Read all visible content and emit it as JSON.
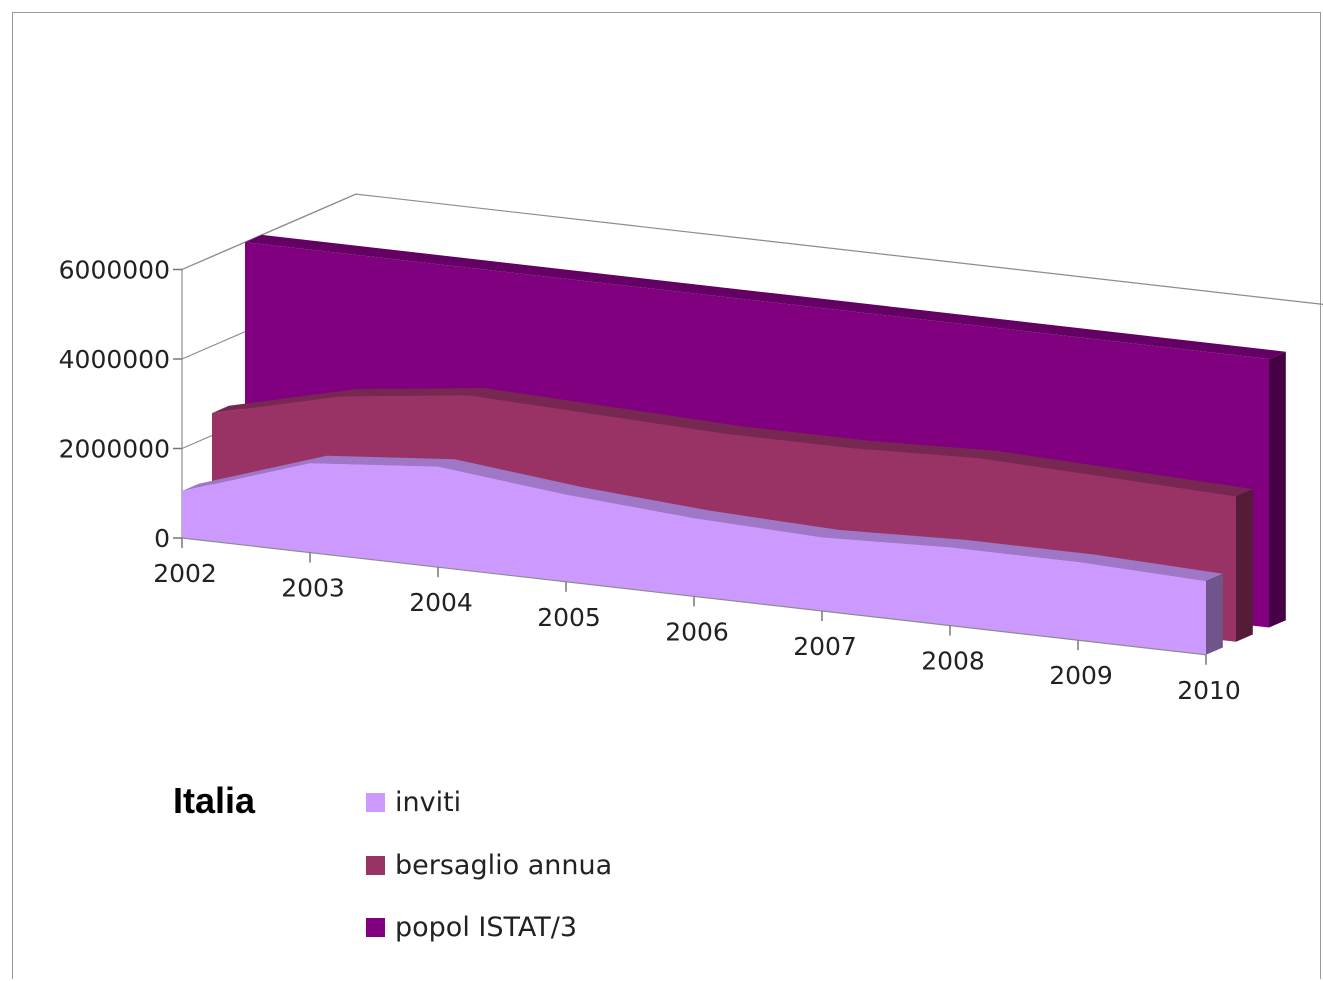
{
  "chart_data": {
    "type": "area",
    "subtype": "3d-area",
    "title": "Italia",
    "categories": [
      "2002",
      "2003",
      "2004",
      "2005",
      "2006",
      "2007",
      "2008",
      "2009",
      "2010"
    ],
    "ylim": [
      0,
      6000000
    ],
    "yticks": [
      "0",
      "2000000",
      "4000000",
      "6000000"
    ],
    "grid": true,
    "legend_position": "bottom-left",
    "series": [
      {
        "name": "inviti",
        "color": "#cc99ff",
        "values": [
          1050000,
          2000000,
          2250000,
          1950000,
          1750000,
          1650000,
          1750000,
          1750000,
          1650000
        ]
      },
      {
        "name": "bersaglio annua",
        "color": "#993366",
        "values": [
          2500000,
          3200000,
          3550000,
          3450000,
          3350000,
          3350000,
          3450000,
          3350000,
          3250000
        ]
      },
      {
        "name": "popol ISTAT/3",
        "color": "#800080",
        "values": [
          6000000,
          6000000,
          6000000,
          6000000,
          6000000,
          6000000,
          6000000,
          6000000,
          6000000
        ]
      }
    ]
  }
}
